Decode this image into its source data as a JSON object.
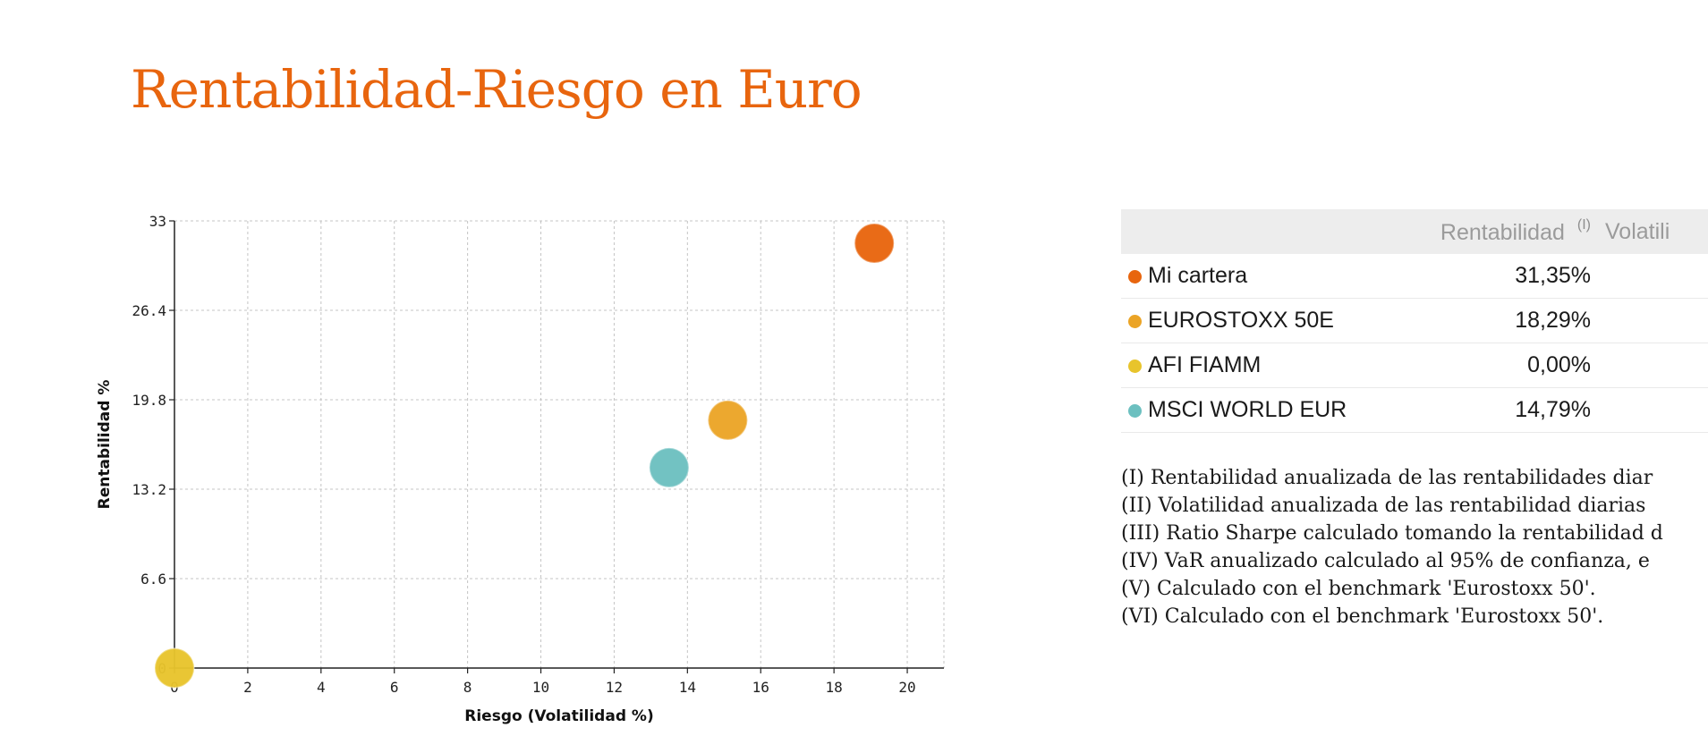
{
  "slide": {
    "title": "Rentabilidad-Riesgo en Euro"
  },
  "chart_data": {
    "type": "scatter",
    "title": "",
    "xlabel": "Riesgo (Volatilidad %)",
    "ylabel": "Rentabilidad %",
    "xlim": [
      0,
      21
    ],
    "ylim": [
      0,
      33
    ],
    "xticks": [
      0,
      2,
      4,
      6,
      8,
      10,
      12,
      14,
      16,
      18,
      20
    ],
    "xtick_labels": [
      "0",
      "2",
      "4",
      "6",
      "8",
      "10",
      "12",
      "14",
      "16",
      "18",
      "20"
    ],
    "yticks": [
      0,
      6.6,
      13.2,
      19.8,
      26.4,
      33
    ],
    "ytick_labels": [
      "0",
      "6.6",
      "13.2",
      "19.8",
      "26.4",
      "33"
    ],
    "grid": true,
    "legend": "none",
    "points": [
      {
        "name": "Mi cartera",
        "x": 19.1,
        "y": 31.35,
        "color": "#e8650e"
      },
      {
        "name": "EUROSTOXX 50E",
        "x": 15.1,
        "y": 18.29,
        "color": "#eba426"
      },
      {
        "name": "AFI FIAMM",
        "x": 0.0,
        "y": 0.0,
        "color": "#e8c42c"
      },
      {
        "name": "MSCI WORLD EUR",
        "x": 13.5,
        "y": 14.79,
        "color": "#6cc0c0"
      }
    ]
  },
  "table": {
    "header_rentabilidad": "Rentabilidad",
    "header_rentabilidad_note": "(I)",
    "header_volatilidad": "Volatili",
    "rows": [
      {
        "name": "Mi cartera",
        "rentabilidad": "31,35%",
        "color": "#e8650e"
      },
      {
        "name": "EUROSTOXX 50E",
        "rentabilidad": "18,29%",
        "color": "#eba426"
      },
      {
        "name": "AFI FIAMM",
        "rentabilidad": "0,00%",
        "color": "#e8c42c"
      },
      {
        "name": "MSCI WORLD EUR",
        "rentabilidad": "14,79%",
        "color": "#6cc0c0"
      }
    ]
  },
  "notes": [
    "(I) Rentabilidad anualizada de las rentabilidades diar",
    "(II) Volatilidad anualizada de las rentabilidad diarias",
    "(III) Ratio Sharpe calculado tomando la rentabilidad d",
    "(IV) VaR anualizado calculado al 95% de confianza, e",
    "(V) Calculado con el benchmark 'Eurostoxx 50'.",
    "(VI) Calculado con el benchmark 'Eurostoxx 50'."
  ]
}
